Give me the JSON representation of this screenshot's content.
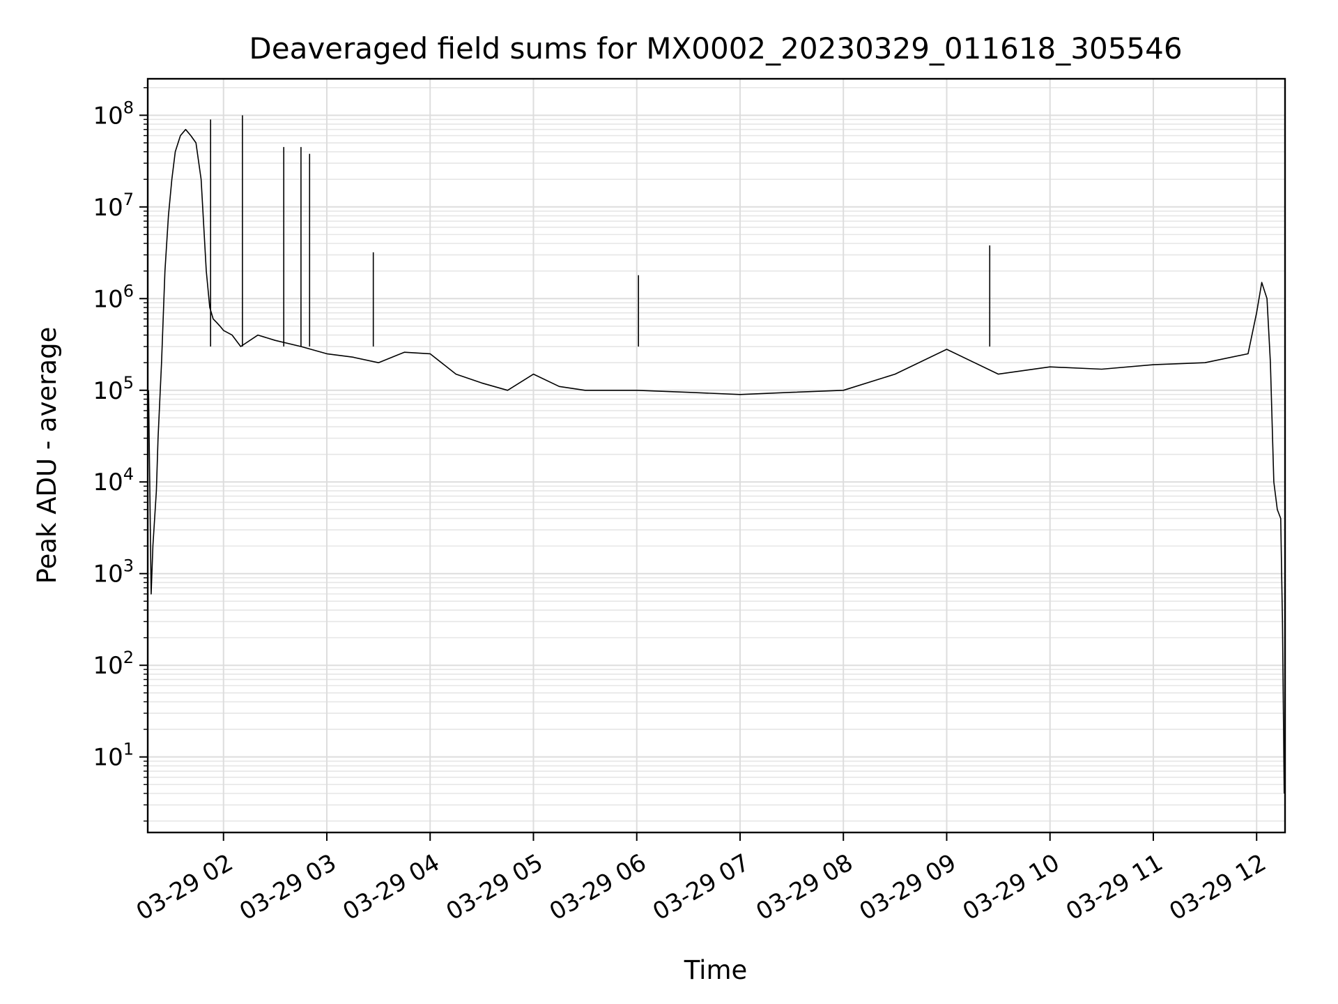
{
  "chart_data": {
    "type": "line",
    "title": "Deaveraged field sums for MX0002_20230329_011618_305546",
    "xlabel": "Time",
    "ylabel": "Peak ADU - average",
    "yscale": "log",
    "ylim": [
      1.5,
      250000000
    ],
    "xlim": [
      "2023-03-29T01:16:00",
      "2023-03-29T12:16:30"
    ],
    "grid": "major and minor, light gray",
    "legend": "none",
    "line_color": "#000000",
    "x_ticks": [
      {
        "value": "2023-03-29T02:00:00",
        "label": "03-29 02"
      },
      {
        "value": "2023-03-29T03:00:00",
        "label": "03-29 03"
      },
      {
        "value": "2023-03-29T04:00:00",
        "label": "03-29 04"
      },
      {
        "value": "2023-03-29T05:00:00",
        "label": "03-29 05"
      },
      {
        "value": "2023-03-29T06:00:00",
        "label": "03-29 06"
      },
      {
        "value": "2023-03-29T07:00:00",
        "label": "03-29 07"
      },
      {
        "value": "2023-03-29T08:00:00",
        "label": "03-29 08"
      },
      {
        "value": "2023-03-29T09:00:00",
        "label": "03-29 09"
      },
      {
        "value": "2023-03-29T10:00:00",
        "label": "03-29 10"
      },
      {
        "value": "2023-03-29T11:00:00",
        "label": "03-29 11"
      },
      {
        "value": "2023-03-29T12:00:00",
        "label": "03-29 12"
      }
    ],
    "y_ticks": [
      {
        "exp": 1,
        "base": "10",
        "power": "1"
      },
      {
        "exp": 2,
        "base": "10",
        "power": "2"
      },
      {
        "exp": 3,
        "base": "10",
        "power": "3"
      },
      {
        "exp": 4,
        "base": "10",
        "power": "4"
      },
      {
        "exp": 5,
        "base": "10",
        "power": "5"
      },
      {
        "exp": 6,
        "base": "10",
        "power": "6"
      },
      {
        "exp": 7,
        "base": "10",
        "power": "7"
      },
      {
        "exp": 8,
        "base": "10",
        "power": "8"
      }
    ],
    "series": [
      {
        "x": [
          "2023-03-29T01:16:30",
          "2023-03-29T01:18:00",
          "2023-03-29T01:19:00",
          "2023-03-29T01:20:00",
          "2023-03-29T01:21:00",
          "2023-03-29T01:22:00",
          "2023-03-29T01:24:00",
          "2023-03-29T01:26:00",
          "2023-03-29T01:28:00",
          "2023-03-29T01:30:00",
          "2023-03-29T01:32:00",
          "2023-03-29T01:35:00",
          "2023-03-29T01:38:00",
          "2023-03-29T01:41:00",
          "2023-03-29T01:44:00",
          "2023-03-29T01:47:00",
          "2023-03-29T01:50:00",
          "2023-03-29T01:52:00",
          "2023-03-29T01:54:00",
          "2023-03-29T01:56:00",
          "2023-03-29T01:58:00",
          "2023-03-29T02:00:00",
          "2023-03-29T02:05:00",
          "2023-03-29T02:10:00",
          "2023-03-29T02:20:00",
          "2023-03-29T02:30:00",
          "2023-03-29T02:45:00",
          "2023-03-29T03:00:00",
          "2023-03-29T03:15:00",
          "2023-03-29T03:30:00",
          "2023-03-29T03:45:00",
          "2023-03-29T04:00:00",
          "2023-03-29T04:15:00",
          "2023-03-29T04:30:00",
          "2023-03-29T04:45:00",
          "2023-03-29T05:00:00",
          "2023-03-29T05:15:00",
          "2023-03-29T05:30:00",
          "2023-03-29T06:00:00",
          "2023-03-29T06:30:00",
          "2023-03-29T07:00:00",
          "2023-03-29T07:30:00",
          "2023-03-29T08:00:00",
          "2023-03-29T08:30:00",
          "2023-03-29T09:00:00",
          "2023-03-29T09:30:00",
          "2023-03-29T10:00:00",
          "2023-03-29T10:30:00",
          "2023-03-29T11:00:00",
          "2023-03-29T11:30:00",
          "2023-03-29T11:55:00",
          "2023-03-29T12:00:00",
          "2023-03-29T12:03:00",
          "2023-03-29T12:06:00",
          "2023-03-29T12:08:00",
          "2023-03-29T12:10:00",
          "2023-03-29T12:12:00",
          "2023-03-29T12:14:00",
          "2023-03-29T12:15:00",
          "2023-03-29T12:16:00"
        ],
        "y": [
          100000,
          600,
          2000,
          4000,
          8000,
          30000,
          200000,
          2000000,
          8000000,
          20000000,
          40000000,
          60000000,
          70000000,
          60000000,
          50000000,
          20000000,
          2000000,
          800000,
          600000,
          550000,
          500000,
          450000,
          400000,
          300000,
          400000,
          350000,
          300000,
          250000,
          230000,
          200000,
          260000,
          250000,
          150000,
          120000,
          100000,
          150000,
          110000,
          100000,
          100000,
          95000,
          90000,
          95000,
          100000,
          150000,
          280000,
          150000,
          180000,
          170000,
          190000,
          200000,
          250000,
          700000,
          1500000,
          1000000,
          200000,
          10000,
          5000,
          4000,
          300,
          4
        ]
      }
    ],
    "spikes": [
      {
        "x": "2023-03-29T01:52:30",
        "y": 90000000
      },
      {
        "x": "2023-03-29T02:11:00",
        "y": 100000000
      },
      {
        "x": "2023-03-29T02:35:00",
        "y": 45000000
      },
      {
        "x": "2023-03-29T02:45:00",
        "y": 45000000
      },
      {
        "x": "2023-03-29T02:50:00",
        "y": 38000000
      },
      {
        "x": "2023-03-29T09:25:00",
        "y": 3800000
      },
      {
        "x": "2023-03-29T06:01:00",
        "y": 1800000
      },
      {
        "x": "2023-03-29T03:27:00",
        "y": 3200000
      }
    ]
  }
}
